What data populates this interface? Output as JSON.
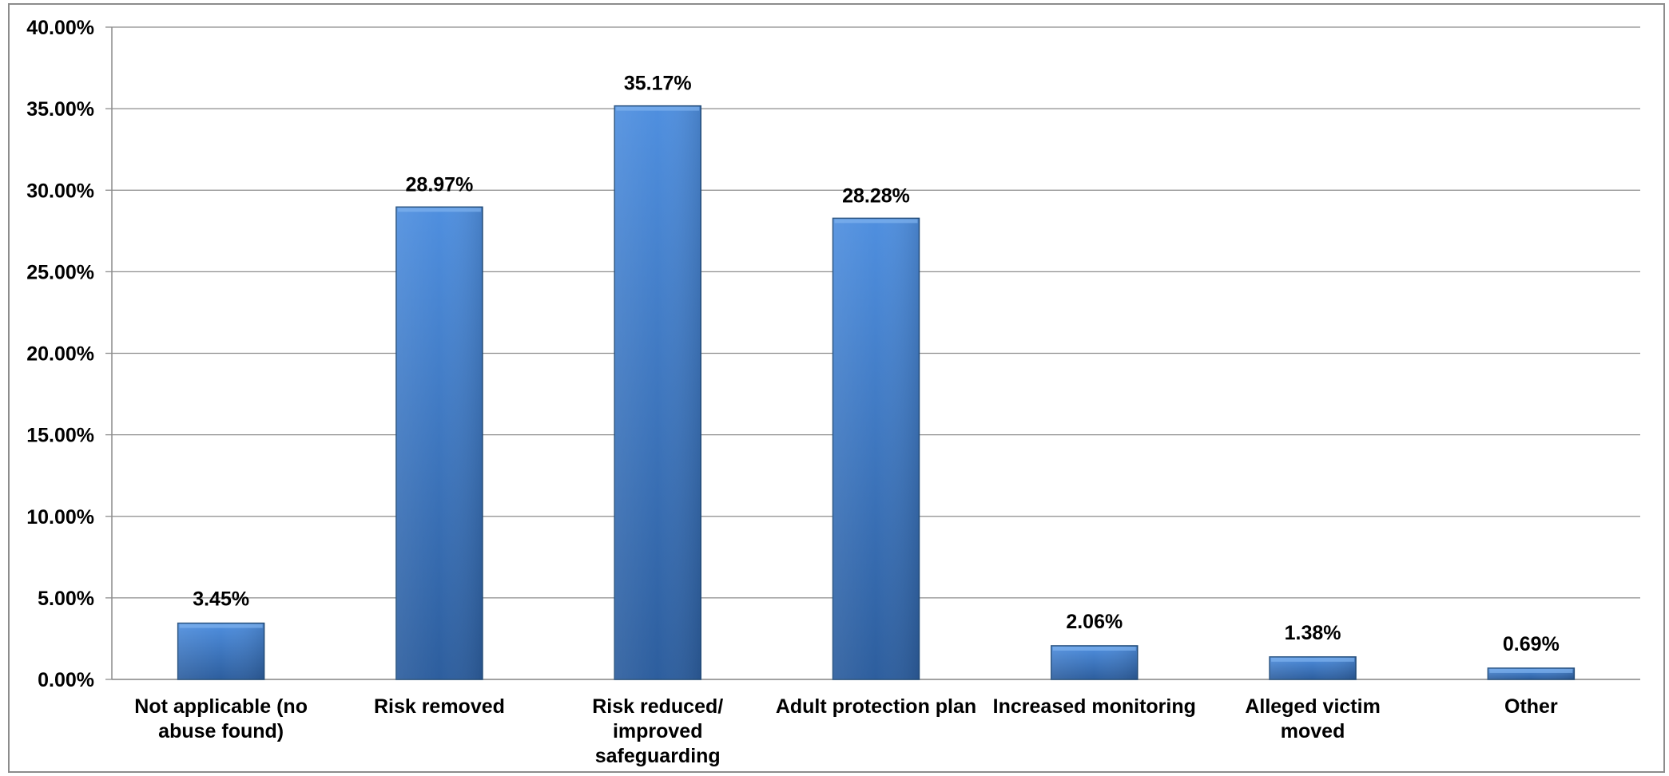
{
  "chart_data": {
    "type": "bar",
    "categories": [
      [
        "Not applicable (no",
        "abuse found)"
      ],
      [
        "Risk removed"
      ],
      [
        "Risk reduced/",
        "improved",
        "safeguarding"
      ],
      [
        "Adult protection plan"
      ],
      [
        "Increased monitoring"
      ],
      [
        "Alleged victim",
        "moved"
      ],
      [
        "Other"
      ]
    ],
    "values": [
      3.45,
      28.97,
      35.17,
      28.28,
      2.06,
      1.38,
      0.69
    ],
    "value_labels": [
      "3.45%",
      "28.97%",
      "35.17%",
      "28.28%",
      "2.06%",
      "1.38%",
      "0.69%"
    ],
    "y_ticks": [
      "0.00%",
      "5.00%",
      "10.00%",
      "15.00%",
      "20.00%",
      "25.00%",
      "30.00%",
      "35.00%",
      "40.00%"
    ],
    "ylim": [
      0,
      40
    ],
    "y_step": 5,
    "grid": true,
    "legend": "none",
    "title": "",
    "xlabel": "",
    "ylabel": "",
    "colors": {
      "bar_light": "#4f8fdf",
      "bar_dark": "#2d5e9e",
      "gridline": "#8c8c8c",
      "axis": "#8c8c8c",
      "text": "#000000"
    }
  }
}
